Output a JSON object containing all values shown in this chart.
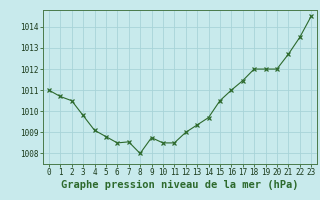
{
  "x": [
    0,
    1,
    2,
    3,
    4,
    5,
    6,
    7,
    8,
    9,
    10,
    11,
    12,
    13,
    14,
    15,
    16,
    17,
    18,
    19,
    20,
    21,
    22,
    23
  ],
  "y": [
    1011.0,
    1010.7,
    1010.5,
    1009.8,
    1009.1,
    1008.8,
    1008.5,
    1008.55,
    1008.0,
    1008.75,
    1008.5,
    1008.5,
    1009.0,
    1009.35,
    1009.7,
    1010.5,
    1011.0,
    1011.45,
    1012.0,
    1012.0,
    1012.0,
    1012.7,
    1013.5,
    1014.5
  ],
  "ylim": [
    1007.5,
    1014.8
  ],
  "yticks": [
    1008,
    1009,
    1010,
    1011,
    1012,
    1013,
    1014
  ],
  "xticks": [
    0,
    1,
    2,
    3,
    4,
    5,
    6,
    7,
    8,
    9,
    10,
    11,
    12,
    13,
    14,
    15,
    16,
    17,
    18,
    19,
    20,
    21,
    22,
    23
  ],
  "xlabel": "Graphe pression niveau de la mer (hPa)",
  "line_color": "#2d6a2d",
  "marker": "x",
  "marker_size": 3,
  "background_color": "#c8eaec",
  "grid_color": "#a8d4d8",
  "tick_fontsize": 5.5,
  "xlabel_fontsize": 7.5,
  "xlabel_color": "#2d6a2d"
}
